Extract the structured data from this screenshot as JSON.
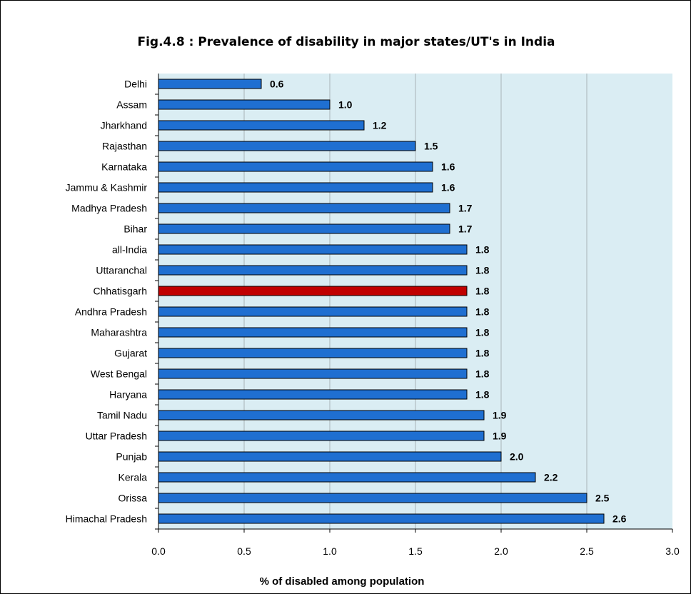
{
  "chart_data": {
    "type": "bar",
    "orientation": "horizontal",
    "title": "Fig.4.8 : Prevalence of disability in major states/UT's in India",
    "xlabel": "% of disabled among population",
    "ylabel": "",
    "xlim": [
      0.0,
      3.0
    ],
    "ticks": [
      "0.0",
      "0.5",
      "1.0",
      "1.5",
      "2.0",
      "2.5",
      "3.0"
    ],
    "grid": true,
    "colors": {
      "bar": "#1f6fd1",
      "highlight": "#c00000",
      "plot_background": "#daedf3",
      "gridline": "#a8b2b7"
    },
    "bars": [
      {
        "category": "Delhi",
        "value": 0.6,
        "label": "0.6"
      },
      {
        "category": "Assam",
        "value": 1.0,
        "label": "1.0"
      },
      {
        "category": "Jharkhand",
        "value": 1.2,
        "label": "1.2"
      },
      {
        "category": "Rajasthan",
        "value": 1.5,
        "label": "1.5"
      },
      {
        "category": "Karnataka",
        "value": 1.6,
        "label": "1.6"
      },
      {
        "category": "Jammu & Kashmir",
        "value": 1.6,
        "label": "1.6"
      },
      {
        "category": "Madhya Pradesh",
        "value": 1.7,
        "label": "1.7"
      },
      {
        "category": "Bihar",
        "value": 1.7,
        "label": "1.7"
      },
      {
        "category": "all-India",
        "value": 1.8,
        "label": "1.8"
      },
      {
        "category": "Uttaranchal",
        "value": 1.8,
        "label": "1.8"
      },
      {
        "category": "Chhatisgarh",
        "value": 1.8,
        "label": "1.8",
        "highlight": true
      },
      {
        "category": "Andhra Pradesh",
        "value": 1.8,
        "label": "1.8"
      },
      {
        "category": "Maharashtra",
        "value": 1.8,
        "label": "1.8"
      },
      {
        "category": "Gujarat",
        "value": 1.8,
        "label": "1.8"
      },
      {
        "category": "West Bengal",
        "value": 1.8,
        "label": "1.8"
      },
      {
        "category": "Haryana",
        "value": 1.8,
        "label": "1.8"
      },
      {
        "category": "Tamil Nadu",
        "value": 1.9,
        "label": "1.9"
      },
      {
        "category": "Uttar Pradesh",
        "value": 1.9,
        "label": "1.9"
      },
      {
        "category": "Punjab",
        "value": 2.0,
        "label": "2.0"
      },
      {
        "category": "Kerala",
        "value": 2.2,
        "label": "2.2"
      },
      {
        "category": "Orissa",
        "value": 2.5,
        "label": "2.5"
      },
      {
        "category": "Himachal Pradesh",
        "value": 2.6,
        "label": "2.6"
      }
    ]
  }
}
